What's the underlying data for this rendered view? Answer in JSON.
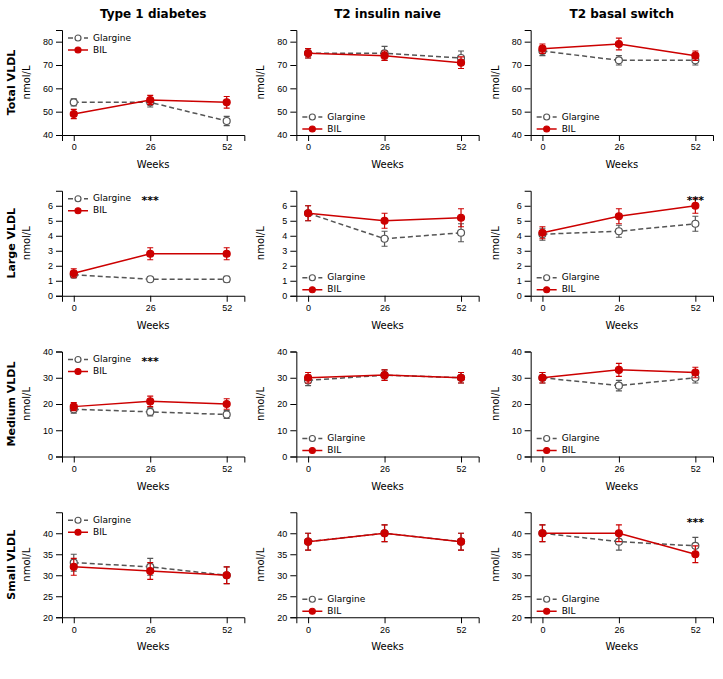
{
  "chart_data": [
    {
      "type": "line",
      "title": "Type 1 diabetes",
      "subtitle": "Total VLDL",
      "x": [
        0,
        26,
        52
      ],
      "xlim": [
        -4,
        58
      ],
      "xticks": [
        0,
        26,
        52
      ],
      "xlabel": "Weeks",
      "ylabel": "nmol/L",
      "ylim": [
        40,
        85
      ],
      "yticks": [
        40,
        50,
        60,
        70,
        80
      ],
      "legend": "upper left",
      "series": [
        {
          "name": "Glargine",
          "color": "#555555",
          "line_style": "dashed",
          "marker": "open-circle",
          "values": [
            54,
            54,
            46
          ],
          "errors": [
            1.5,
            2,
            2
          ]
        },
        {
          "name": "BIL",
          "color": "#cc0000",
          "line_style": "solid",
          "marker": "circle",
          "values": [
            49,
            55,
            54
          ],
          "errors": [
            2,
            2,
            2.5
          ]
        }
      ]
    },
    {
      "type": "line",
      "title": "T2 insulin naive",
      "x": [
        0,
        26,
        52
      ],
      "xlim": [
        -4,
        58
      ],
      "xticks": [
        0,
        26,
        52
      ],
      "xlabel": "Weeks",
      "ylabel": "nmol/L",
      "ylim": [
        40,
        85
      ],
      "yticks": [
        40,
        50,
        60,
        70,
        80
      ],
      "legend": "lower left",
      "series": [
        {
          "name": "Glargine",
          "color": "#555555",
          "line_style": "dashed",
          "marker": "open-circle",
          "values": [
            75,
            75,
            73
          ],
          "errors": [
            2,
            3,
            3
          ]
        },
        {
          "name": "BIL",
          "color": "#cc0000",
          "line_style": "solid",
          "marker": "circle",
          "values": [
            75,
            74,
            71
          ],
          "errors": [
            2,
            2,
            2.5
          ]
        }
      ]
    },
    {
      "type": "line",
      "title": "T2 basal switch",
      "x": [
        0,
        26,
        52
      ],
      "xlim": [
        -4,
        58
      ],
      "xticks": [
        0,
        26,
        52
      ],
      "xlabel": "Weeks",
      "ylabel": "nmol/L",
      "ylim": [
        40,
        85
      ],
      "yticks": [
        40,
        50,
        60,
        70,
        80
      ],
      "legend": "lower left",
      "series": [
        {
          "name": "Glargine",
          "color": "#555555",
          "line_style": "dashed",
          "marker": "open-circle",
          "values": [
            76,
            72,
            72
          ],
          "errors": [
            2,
            2,
            2
          ]
        },
        {
          "name": "BIL",
          "color": "#cc0000",
          "line_style": "solid",
          "marker": "circle",
          "values": [
            77,
            79,
            74
          ],
          "errors": [
            2,
            2.5,
            2
          ]
        }
      ]
    },
    {
      "type": "line",
      "subtitle": "Large VLDL",
      "x": [
        0,
        26,
        52
      ],
      "xlim": [
        -4,
        58
      ],
      "xticks": [
        0,
        26,
        52
      ],
      "xlabel": "Weeks",
      "ylabel": "nmol/L",
      "ylim": [
        0,
        7
      ],
      "yticks": [
        0,
        1,
        2,
        3,
        4,
        5,
        6
      ],
      "legend": "upper left",
      "series": [
        {
          "name": "Glargine",
          "color": "#555555",
          "line_style": "dashed",
          "marker": "open-circle",
          "values": [
            1.4,
            1.1,
            1.1
          ],
          "errors": [
            0.2,
            0.15,
            0.2
          ]
        },
        {
          "name": "BIL",
          "color": "#cc0000",
          "line_style": "solid",
          "marker": "circle",
          "values": [
            1.5,
            2.8,
            2.8
          ],
          "errors": [
            0.3,
            0.4,
            0.4
          ]
        }
      ],
      "annotations": [
        {
          "text": "***",
          "x": 26,
          "y": 6.3
        }
      ]
    },
    {
      "type": "line",
      "x": [
        0,
        26,
        52
      ],
      "xlim": [
        -4,
        58
      ],
      "xticks": [
        0,
        26,
        52
      ],
      "xlabel": "Weeks",
      "ylabel": "nmol/L",
      "ylim": [
        0,
        7
      ],
      "yticks": [
        0,
        1,
        2,
        3,
        4,
        5,
        6
      ],
      "legend": "lower left",
      "series": [
        {
          "name": "Glargine",
          "color": "#555555",
          "line_style": "dashed",
          "marker": "open-circle",
          "values": [
            5.5,
            3.8,
            4.2
          ],
          "errors": [
            0.5,
            0.5,
            0.6
          ]
        },
        {
          "name": "BIL",
          "color": "#cc0000",
          "line_style": "solid",
          "marker": "circle",
          "values": [
            5.5,
            5.0,
            5.2
          ],
          "errors": [
            0.5,
            0.5,
            0.6
          ]
        }
      ]
    },
    {
      "type": "line",
      "x": [
        0,
        26,
        52
      ],
      "xlim": [
        -4,
        58
      ],
      "xticks": [
        0,
        26,
        52
      ],
      "xlabel": "Weeks",
      "ylabel": "nmol/L",
      "ylim": [
        0,
        7
      ],
      "yticks": [
        0,
        1,
        2,
        3,
        4,
        5,
        6
      ],
      "legend": "lower left",
      "series": [
        {
          "name": "Glargine",
          "color": "#555555",
          "line_style": "dashed",
          "marker": "open-circle",
          "values": [
            4.1,
            4.3,
            4.8
          ],
          "errors": [
            0.4,
            0.4,
            0.5
          ]
        },
        {
          "name": "BIL",
          "color": "#cc0000",
          "line_style": "solid",
          "marker": "circle",
          "values": [
            4.2,
            5.3,
            6.0
          ],
          "errors": [
            0.4,
            0.5,
            0.5
          ]
        }
      ],
      "annotations": [
        {
          "text": "***",
          "x": 52,
          "y": 6.3
        }
      ]
    },
    {
      "type": "line",
      "subtitle": "Medium VLDL",
      "x": [
        0,
        26,
        52
      ],
      "xlim": [
        -4,
        58
      ],
      "xticks": [
        0,
        26,
        52
      ],
      "xlabel": "Weeks",
      "ylabel": "nmol/L",
      "ylim": [
        0,
        40
      ],
      "yticks": [
        0,
        10,
        20,
        30,
        40
      ],
      "legend": "upper left",
      "series": [
        {
          "name": "Glargine",
          "color": "#555555",
          "line_style": "dashed",
          "marker": "open-circle",
          "values": [
            18,
            17,
            16
          ],
          "errors": [
            1.5,
            1.5,
            1.5
          ]
        },
        {
          "name": "BIL",
          "color": "#cc0000",
          "line_style": "solid",
          "marker": "circle",
          "values": [
            19,
            21,
            20
          ],
          "errors": [
            1.5,
            2,
            2
          ]
        }
      ],
      "annotations": [
        {
          "text": "***",
          "x": 26,
          "y": 36
        }
      ]
    },
    {
      "type": "line",
      "x": [
        0,
        26,
        52
      ],
      "xlim": [
        -4,
        58
      ],
      "xticks": [
        0,
        26,
        52
      ],
      "xlabel": "Weeks",
      "ylabel": "nmol/L",
      "ylim": [
        0,
        40
      ],
      "yticks": [
        0,
        10,
        20,
        30,
        40
      ],
      "legend": "lower left",
      "series": [
        {
          "name": "Glargine",
          "color": "#555555",
          "line_style": "dashed",
          "marker": "open-circle",
          "values": [
            29,
            31,
            30
          ],
          "errors": [
            2,
            2,
            2
          ]
        },
        {
          "name": "BIL",
          "color": "#cc0000",
          "line_style": "solid",
          "marker": "circle",
          "values": [
            30,
            31,
            30
          ],
          "errors": [
            2,
            2,
            2
          ]
        }
      ]
    },
    {
      "type": "line",
      "x": [
        0,
        26,
        52
      ],
      "xlim": [
        -4,
        58
      ],
      "xticks": [
        0,
        26,
        52
      ],
      "xlabel": "Weeks",
      "ylabel": "nmol/L",
      "ylim": [
        0,
        40
      ],
      "yticks": [
        0,
        10,
        20,
        30,
        40
      ],
      "legend": "lower left",
      "series": [
        {
          "name": "Glargine",
          "color": "#555555",
          "line_style": "dashed",
          "marker": "open-circle",
          "values": [
            30,
            27,
            30
          ],
          "errors": [
            2,
            2,
            2
          ]
        },
        {
          "name": "BIL",
          "color": "#cc0000",
          "line_style": "solid",
          "marker": "circle",
          "values": [
            30,
            33,
            32
          ],
          "errors": [
            2,
            2.5,
            2
          ]
        }
      ]
    },
    {
      "type": "line",
      "subtitle": "Small VLDL",
      "x": [
        0,
        26,
        52
      ],
      "xlim": [
        -4,
        58
      ],
      "xticks": [
        0,
        26,
        52
      ],
      "xlabel": "Weeks",
      "ylabel": "nmol/L",
      "ylim": [
        20,
        45
      ],
      "yticks": [
        20,
        25,
        30,
        35,
        40
      ],
      "legend": "upper left",
      "series": [
        {
          "name": "Glargine",
          "color": "#555555",
          "line_style": "dashed",
          "marker": "open-circle",
          "values": [
            33,
            32,
            30
          ],
          "errors": [
            2,
            2,
            2
          ]
        },
        {
          "name": "BIL",
          "color": "#cc0000",
          "line_style": "solid",
          "marker": "circle",
          "values": [
            32,
            31,
            30
          ],
          "errors": [
            2,
            2,
            2
          ]
        }
      ]
    },
    {
      "type": "line",
      "x": [
        0,
        26,
        52
      ],
      "xlim": [
        -4,
        58
      ],
      "xticks": [
        0,
        26,
        52
      ],
      "xlabel": "Weeks",
      "ylabel": "nmol/L",
      "ylim": [
        20,
        45
      ],
      "yticks": [
        20,
        25,
        30,
        35,
        40
      ],
      "legend": "lower left",
      "series": [
        {
          "name": "Glargine",
          "color": "#555555",
          "line_style": "dashed",
          "marker": "open-circle",
          "values": [
            38,
            40,
            38
          ],
          "errors": [
            2,
            2,
            2
          ]
        },
        {
          "name": "BIL",
          "color": "#cc0000",
          "line_style": "solid",
          "marker": "circle",
          "values": [
            38,
            40,
            38
          ],
          "errors": [
            2,
            2,
            2
          ]
        }
      ]
    },
    {
      "type": "line",
      "x": [
        0,
        26,
        52
      ],
      "xlim": [
        -4,
        58
      ],
      "xticks": [
        0,
        26,
        52
      ],
      "xlabel": "Weeks",
      "ylabel": "nmol/L",
      "ylim": [
        20,
        45
      ],
      "yticks": [
        20,
        25,
        30,
        35,
        40
      ],
      "legend": "lower left",
      "series": [
        {
          "name": "Glargine",
          "color": "#555555",
          "line_style": "dashed",
          "marker": "open-circle",
          "values": [
            40,
            38,
            37
          ],
          "errors": [
            2,
            2,
            2
          ]
        },
        {
          "name": "BIL",
          "color": "#cc0000",
          "line_style": "solid",
          "marker": "circle",
          "values": [
            40,
            40,
            35
          ],
          "errors": [
            2,
            2,
            2
          ]
        }
      ],
      "annotations": [
        {
          "text": "***",
          "x": 52,
          "y": 42.5
        }
      ]
    }
  ]
}
